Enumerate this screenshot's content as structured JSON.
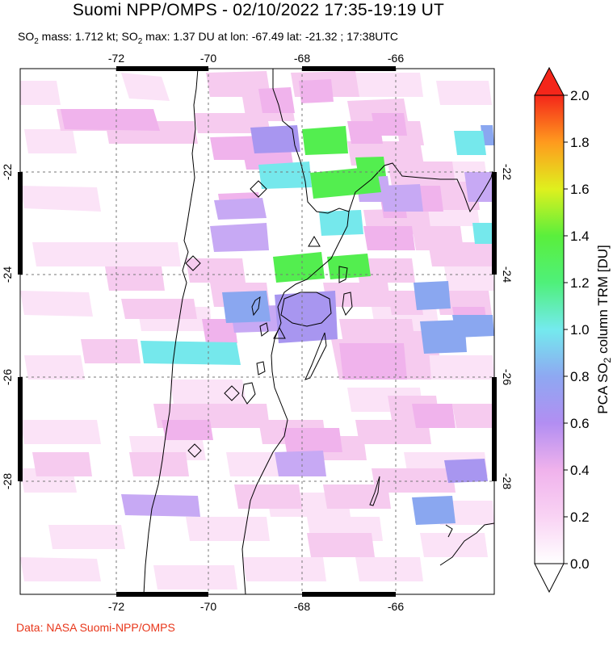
{
  "title": "Suomi NPP/OMPS - 02/10/2022 17:35-19:19 UT",
  "subtitle": {
    "mass_prefix": "SO",
    "mass_sub": "2",
    "mass_text": " mass: 1.712 kt; SO",
    "max_sub": "2",
    "max_text": " max: 1.37 DU at lon: -67.49 lat: -21.32 ; 17:38UTC"
  },
  "credit": "Data: NASA Suomi-NPP/OMPS",
  "map": {
    "lon_ticks": [
      "-72",
      "-70",
      "-68",
      "-66"
    ],
    "lat_ticks": [
      "-22",
      "-24",
      "-26",
      "-28"
    ]
  },
  "colorbar": {
    "ticks": [
      "2.0",
      "1.8",
      "1.6",
      "1.4",
      "1.2",
      "1.0",
      "0.8",
      "0.6",
      "0.4",
      "0.2",
      "0.0"
    ],
    "label_main": "PCA SO",
    "label_sub": "2",
    "label_tail": " column TRM [DU]"
  },
  "colors": {
    "credit": "#e8361a",
    "gridline": "#777777",
    "pink_light": "#f6cbef",
    "pink": "#f0b3ec",
    "lavender": "#c7a9f4",
    "violet": "#a58af0",
    "blue": "#8aa7f0",
    "cyan": "#75e8ec",
    "green": "#53ee4f"
  }
}
